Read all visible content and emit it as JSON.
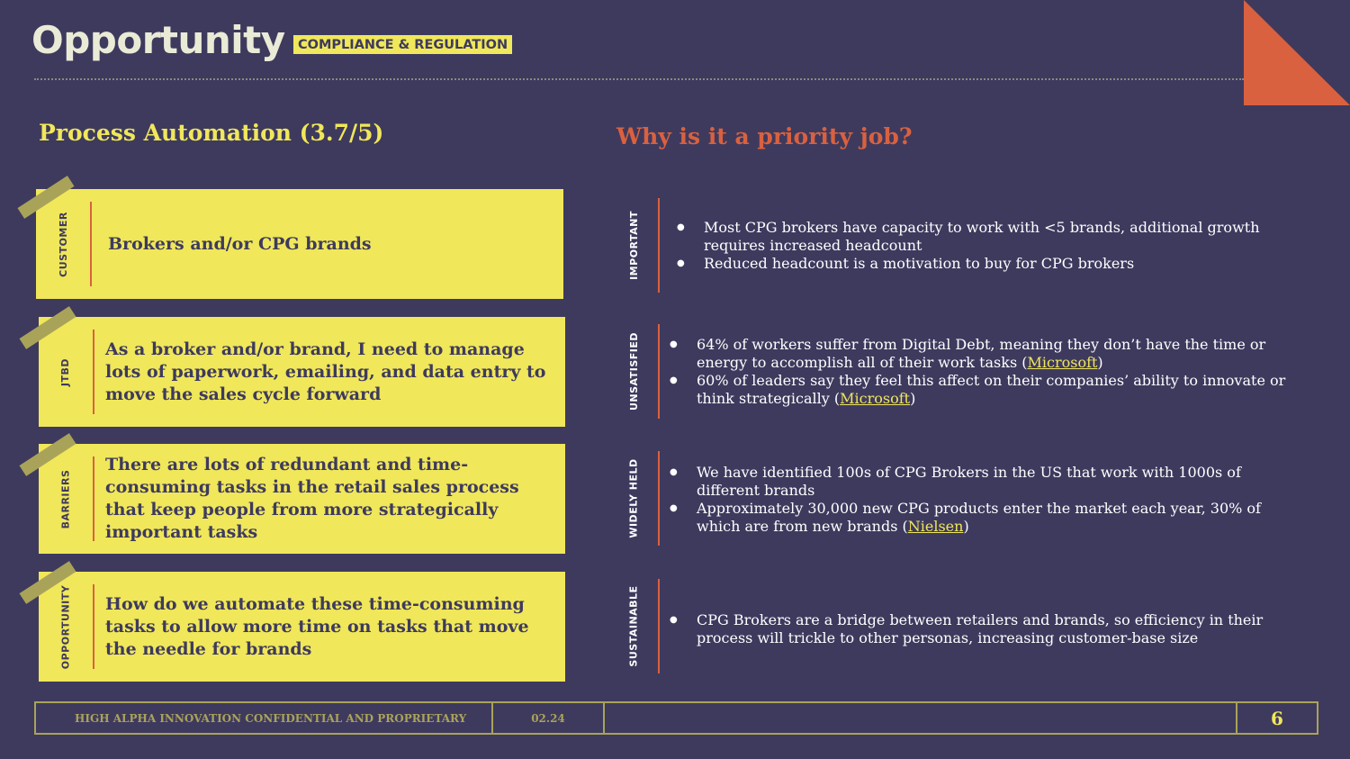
{
  "header": {
    "title": "Opportunity",
    "tag": "COMPLIANCE & REGULATION"
  },
  "left": {
    "subtitle": "Process Automation (3.7/5)",
    "cards": [
      {
        "label": "CUSTOMER",
        "text": "Brokers and/or CPG brands"
      },
      {
        "label": "JTBD",
        "text": "As a broker and/or brand, I need to manage lots of paperwork, emailing, and data entry to move the sales cycle forward"
      },
      {
        "label": "BARRIERS",
        "text": "There are lots of redundant and time-consuming tasks in the retail sales process that keep people from more strategically important tasks"
      },
      {
        "label": "OPPORTUNITY",
        "text": "How do we automate these time-consuming tasks to allow more time on tasks that move the needle for brands"
      }
    ]
  },
  "right": {
    "heading": "Why is it a priority job?",
    "rows": [
      {
        "label": "IMPORTANT",
        "bullets": [
          {
            "text": "Most CPG brokers have capacity to work with <5 brands, additional growth requires increased headcount"
          },
          {
            "text": "Reduced headcount is a motivation to buy for CPG brokers"
          }
        ]
      },
      {
        "label": "UNSATISFIED",
        "bullets": [
          {
            "text": "64% of workers suffer from Digital Debt, meaning they don’t have the time or energy to accomplish all of their work tasks (",
            "cite": "Microsoft",
            "after": ")"
          },
          {
            "text": "60% of leaders say they feel this affect on their companies’ ability to innovate or think strategically (",
            "cite": "Microsoft",
            "after": ")"
          }
        ]
      },
      {
        "label": "WIDELY HELD",
        "bullets": [
          {
            "text": "We have identified 100s of CPG Brokers in the US that work with 1000s of different brands"
          },
          {
            "text": "Approximately 30,000 new CPG products enter the market each year, 30% of which are from new brands (",
            "cite": "Nielsen",
            "after": ")"
          }
        ]
      },
      {
        "label": "SUSTAINABLE",
        "bullets": [
          {
            "text": "CPG Brokers are a bridge between retailers and brands, so efficiency in their process will trickle to other personas, increasing customer-base size"
          }
        ]
      }
    ]
  },
  "footer": {
    "confidential": "HIGH ALPHA INNOVATION CONFIDENTIAL AND PROPRIETARY",
    "date": "02.24",
    "page": "6"
  },
  "colors": {
    "background": "#3e3a5e",
    "yellow": "#f0e75a",
    "accent": "#d9613f",
    "tape": "#a9a35a"
  }
}
